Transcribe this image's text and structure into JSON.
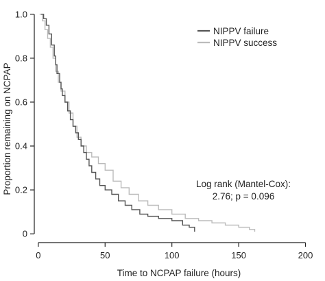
{
  "chart_data": {
    "type": "line",
    "subtype": "kaplan-meier step curve",
    "xlabel": "Time to NCPAP failure (hours)",
    "ylabel": "Proportion remaining on NCPAP",
    "xlim": [
      -3,
      210
    ],
    "ylim": [
      -0.04,
      1.04
    ],
    "x_ticks": [
      0,
      50,
      100,
      150,
      200
    ],
    "y_ticks": [
      "0",
      "0.2",
      "0.4",
      "0.6",
      "0.8",
      "1.0"
    ],
    "y_tick_values": [
      0,
      0.2,
      0.4,
      0.6,
      0.8,
      1.0
    ],
    "grid": false,
    "legend_position": "top-right",
    "annotation_lines": [
      "Log rank (Mantel-Cox):",
      "2.76; p = 0.096"
    ],
    "series": [
      {
        "name": "NIPPV failure",
        "color": "#555555",
        "points": [
          [
            2,
            1.0
          ],
          [
            4,
            0.98
          ],
          [
            6,
            0.95
          ],
          [
            8,
            0.91
          ],
          [
            10,
            0.86
          ],
          [
            12,
            0.81
          ],
          [
            13,
            0.77
          ],
          [
            14,
            0.73
          ],
          [
            16,
            0.69
          ],
          [
            17,
            0.66
          ],
          [
            18,
            0.63
          ],
          [
            20,
            0.6
          ],
          [
            22,
            0.56
          ],
          [
            24,
            0.52
          ],
          [
            26,
            0.49
          ],
          [
            28,
            0.46
          ],
          [
            30,
            0.43
          ],
          [
            32,
            0.4
          ],
          [
            34,
            0.37
          ],
          [
            36,
            0.34
          ],
          [
            38,
            0.31
          ],
          [
            40,
            0.28
          ],
          [
            43,
            0.25
          ],
          [
            46,
            0.22
          ],
          [
            50,
            0.2
          ],
          [
            55,
            0.18
          ],
          [
            60,
            0.15
          ],
          [
            65,
            0.13
          ],
          [
            70,
            0.11
          ],
          [
            76,
            0.09
          ],
          [
            82,
            0.08
          ],
          [
            90,
            0.07
          ],
          [
            100,
            0.06
          ],
          [
            108,
            0.04
          ],
          [
            113,
            0.03
          ],
          [
            117,
            0.01
          ]
        ]
      },
      {
        "name": "NIPPV success",
        "color": "#bbbbbb",
        "points": [
          [
            1,
            1.0
          ],
          [
            3,
            0.97
          ],
          [
            5,
            0.93
          ],
          [
            7,
            0.89
          ],
          [
            9,
            0.85
          ],
          [
            11,
            0.8
          ],
          [
            13,
            0.74
          ],
          [
            15,
            0.69
          ],
          [
            17,
            0.65
          ],
          [
            20,
            0.6
          ],
          [
            23,
            0.55
          ],
          [
            26,
            0.49
          ],
          [
            29,
            0.44
          ],
          [
            32,
            0.4
          ],
          [
            36,
            0.37
          ],
          [
            40,
            0.35
          ],
          [
            45,
            0.32
          ],
          [
            50,
            0.29
          ],
          [
            56,
            0.24
          ],
          [
            62,
            0.21
          ],
          [
            68,
            0.18
          ],
          [
            75,
            0.15
          ],
          [
            82,
            0.13
          ],
          [
            90,
            0.11
          ],
          [
            100,
            0.09
          ],
          [
            110,
            0.07
          ],
          [
            120,
            0.06
          ],
          [
            130,
            0.05
          ],
          [
            140,
            0.04
          ],
          [
            150,
            0.03
          ],
          [
            158,
            0.02
          ],
          [
            162,
            0.01
          ]
        ]
      }
    ]
  }
}
